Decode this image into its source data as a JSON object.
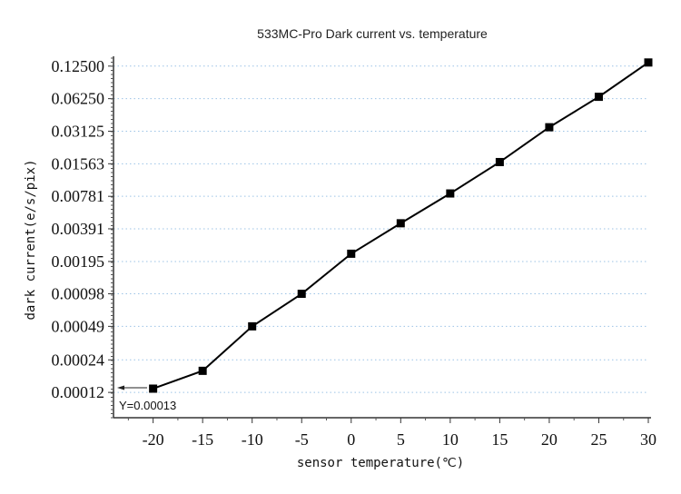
{
  "chart_data": {
    "type": "line",
    "title": "533MC-Pro Dark current vs. temperature",
    "xlabel": "sensor temperature(℃)",
    "ylabel": "dark current(e/s/pix)",
    "x": [
      -20,
      -15,
      -10,
      -5,
      0,
      5,
      10,
      15,
      20,
      25,
      30
    ],
    "values": [
      0.00013,
      0.00019,
      0.00049,
      0.00098,
      0.0023,
      0.0044,
      0.0083,
      0.0162,
      0.034,
      0.065,
      0.135
    ],
    "xticks": [
      "-20",
      "-15",
      "-10",
      "-5",
      "0",
      "5",
      "10",
      "15",
      "20",
      "25",
      "30"
    ],
    "yticks": [
      "0.00012",
      "0.00024",
      "0.00049",
      "0.00098",
      "0.00195",
      "0.00391",
      "0.00781",
      "0.01563",
      "0.03125",
      "0.06250",
      "0.12500"
    ],
    "ytick_values": [
      0.00012,
      0.00024,
      0.00049,
      0.00098,
      0.00195,
      0.00391,
      0.00781,
      0.015625,
      0.03125,
      0.0625,
      0.125
    ],
    "xlim": [
      -24,
      30
    ],
    "ylim": [
      7e-05,
      0.154
    ],
    "yscale": "log2",
    "grid": "horizontal dotted",
    "marker": "square",
    "line_color": "#000000",
    "grid_color": "#9cc3e6",
    "annotation": "Y=0.00013"
  }
}
